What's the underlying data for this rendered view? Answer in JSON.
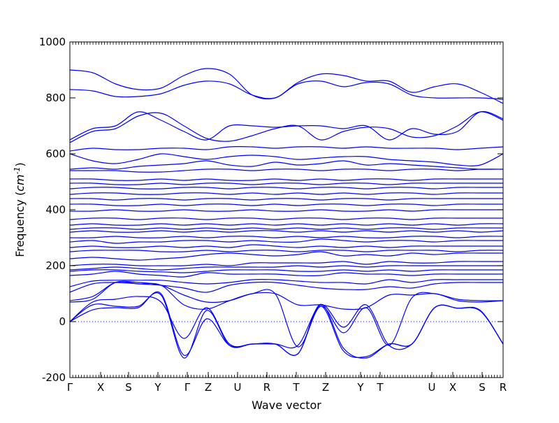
{
  "chart_data": {
    "type": "line",
    "xlabel": "Wave vector",
    "ylabel": "Frequency ($cm^{-1}$)",
    "ylim": [
      -200,
      1000
    ],
    "yticks": [
      -200,
      0,
      200,
      400,
      600,
      800,
      1000
    ],
    "high_symmetry_points": [
      "Γ",
      "X",
      "S",
      "Y",
      "Γ",
      "Z",
      "U",
      "R",
      "T",
      "Z",
      "Y",
      "T",
      "U",
      "X",
      "S",
      "R"
    ],
    "high_symmetry_positions": [
      0,
      1.1,
      2.1,
      3.15,
      4.2,
      4.95,
      6.0,
      7.05,
      8.1,
      9.15,
      10.4,
      11.1,
      12.95,
      13.7,
      14.75,
      15.5
    ],
    "zero_reference_line": {
      "y": 0,
      "style": "dotted"
    },
    "line_color": "#0000ff",
    "series": [
      {
        "values": [
          0,
          42,
          50,
          50,
          100,
          -120,
          10,
          -85,
          -80,
          -80,
          -115,
          55,
          -105,
          -125,
          -80,
          -80,
          50,
          48,
          38,
          -80
        ]
      },
      {
        "values": [
          0,
          60,
          55,
          55,
          95,
          -130,
          40,
          -85,
          -80,
          -80,
          -115,
          62,
          -95,
          -130,
          -80,
          -80,
          50,
          48,
          38,
          -80
        ]
      },
      {
        "values": [
          0,
          70,
          80,
          90,
          70,
          -60,
          50,
          -80,
          -80,
          -80,
          -85,
          60,
          -20,
          60,
          -85,
          -80,
          50,
          48,
          40,
          -80
        ]
      },
      {
        "values": [
          70,
          80,
          140,
          135,
          130,
          60,
          45,
          75,
          100,
          100,
          -90,
          55,
          -40,
          50,
          -85,
          85,
          100,
          75,
          70,
          75
        ]
      },
      {
        "values": [
          75,
          90,
          140,
          140,
          130,
          95,
          70,
          75,
          100,
          100,
          60,
          60,
          45,
          50,
          95,
          95,
          100,
          80,
          75,
          75
        ]
      },
      {
        "values": [
          105,
          135,
          140,
          135,
          130,
          120,
          105,
          130,
          140,
          140,
          130,
          120,
          115,
          115,
          125,
          120,
          135,
          140,
          140,
          140
        ]
      },
      {
        "values": [
          125,
          145,
          148,
          148,
          148,
          140,
          135,
          140,
          150,
          150,
          145,
          140,
          140,
          135,
          150,
          140,
          150,
          150,
          150,
          150
        ]
      },
      {
        "values": [
          165,
          170,
          180,
          170,
          165,
          160,
          175,
          170,
          170,
          170,
          165,
          165,
          175,
          170,
          170,
          165,
          170,
          170,
          170,
          170
        ]
      },
      {
        "values": [
          180,
          185,
          185,
          180,
          178,
          175,
          180,
          185,
          185,
          185,
          180,
          180,
          185,
          180,
          185,
          180,
          185,
          185,
          185,
          185
        ]
      },
      {
        "values": [
          185,
          190,
          195,
          190,
          185,
          190,
          195,
          195,
          195,
          195,
          200,
          195,
          200,
          195,
          200,
          200,
          200,
          200,
          200,
          200
        ]
      },
      {
        "values": [
          200,
          205,
          205,
          200,
          200,
          200,
          205,
          200,
          210,
          210,
          210,
          210,
          215,
          205,
          215,
          210,
          210,
          215,
          215,
          215
        ]
      },
      {
        "values": [
          225,
          230,
          225,
          220,
          225,
          230,
          240,
          245,
          240,
          235,
          240,
          250,
          235,
          240,
          235,
          245,
          240,
          245,
          245,
          245
        ]
      },
      {
        "values": [
          250,
          255,
          255,
          255,
          250,
          250,
          255,
          250,
          255,
          255,
          250,
          255,
          255,
          250,
          255,
          255,
          255,
          250,
          255,
          255
        ]
      },
      {
        "values": [
          265,
          270,
          265,
          265,
          270,
          265,
          270,
          265,
          275,
          270,
          265,
          270,
          265,
          270,
          265,
          270,
          270,
          270,
          270,
          270
        ]
      },
      {
        "values": [
          285,
          290,
          280,
          285,
          285,
          290,
          290,
          285,
          290,
          285,
          285,
          295,
          290,
          285,
          290,
          290,
          285,
          290,
          290,
          290
        ]
      },
      {
        "values": [
          300,
          300,
          305,
          300,
          300,
          305,
          300,
          305,
          305,
          300,
          305,
          300,
          305,
          300,
          300,
          305,
          305,
          300,
          305,
          305
        ]
      },
      {
        "values": [
          320,
          325,
          320,
          320,
          325,
          320,
          325,
          320,
          325,
          325,
          320,
          325,
          320,
          325,
          320,
          325,
          320,
          325,
          320,
          325
        ]
      },
      {
        "values": [
          330,
          335,
          335,
          330,
          335,
          330,
          335,
          330,
          335,
          330,
          335,
          330,
          335,
          330,
          335,
          335,
          330,
          335,
          335,
          335
        ]
      },
      {
        "values": [
          345,
          350,
          345,
          345,
          350,
          345,
          350,
          345,
          350,
          345,
          350,
          345,
          350,
          345,
          350,
          345,
          350,
          345,
          350,
          350
        ]
      },
      {
        "values": [
          365,
          370,
          370,
          365,
          370,
          370,
          365,
          370,
          370,
          365,
          370,
          370,
          365,
          370,
          370,
          365,
          370,
          370,
          370,
          370
        ]
      },
      {
        "values": [
          395,
          395,
          400,
          395,
          395,
          400,
          395,
          395,
          400,
          395,
          395,
          400,
          395,
          395,
          400,
          395,
          400,
          400,
          400,
          400
        ]
      },
      {
        "values": [
          420,
          420,
          415,
          415,
          420,
          415,
          420,
          420,
          415,
          420,
          415,
          420,
          420,
          415,
          420,
          420,
          415,
          420,
          420,
          420
        ]
      },
      {
        "values": [
          440,
          440,
          435,
          440,
          440,
          435,
          440,
          440,
          435,
          440,
          440,
          435,
          440,
          440,
          435,
          440,
          440,
          440,
          440,
          440
        ]
      },
      {
        "values": [
          455,
          460,
          460,
          455,
          455,
          460,
          460,
          455,
          460,
          455,
          460,
          455,
          460,
          455,
          460,
          460,
          455,
          460,
          460,
          460
        ]
      },
      {
        "values": [
          475,
          480,
          480,
          475,
          475,
          480,
          480,
          475,
          480,
          480,
          475,
          480,
          480,
          475,
          480,
          480,
          475,
          480,
          480,
          480
        ]
      },
      {
        "values": [
          495,
          495,
          490,
          490,
          495,
          490,
          495,
          495,
          490,
          495,
          495,
          490,
          495,
          495,
          490,
          495,
          495,
          495,
          495,
          495
        ]
      },
      {
        "values": [
          510,
          510,
          505,
          505,
          510,
          505,
          510,
          505,
          505,
          510,
          505,
          510,
          505,
          510,
          510,
          505,
          510,
          510,
          510,
          510
        ]
      },
      {
        "values": [
          540,
          540,
          540,
          535,
          535,
          540,
          545,
          545,
          540,
          545,
          545,
          540,
          545,
          545,
          540,
          545,
          545,
          540,
          545,
          545
        ]
      },
      {
        "values": [
          545,
          550,
          545,
          555,
          560,
          565,
          575,
          560,
          555,
          570,
          560,
          565,
          575,
          560,
          565,
          560,
          555,
          550,
          545,
          545
        ]
      },
      {
        "values": [
          600,
          575,
          565,
          580,
          600,
          590,
          580,
          590,
          595,
          590,
          580,
          585,
          590,
          590,
          580,
          575,
          570,
          560,
          560,
          600
        ]
      },
      {
        "values": [
          610,
          620,
          615,
          615,
          620,
          620,
          615,
          625,
          625,
          620,
          625,
          625,
          620,
          625,
          620,
          620,
          620,
          615,
          620,
          625
        ]
      },
      {
        "values": [
          640,
          680,
          690,
          735,
          745,
          700,
          655,
          645,
          665,
          690,
          700,
          650,
          680,
          695,
          690,
          660,
          665,
          700,
          750,
          720
        ]
      },
      {
        "values": [
          650,
          690,
          700,
          750,
          720,
          680,
          650,
          700,
          700,
          695,
          700,
          700,
          690,
          700,
          650,
          690,
          670,
          680,
          750,
          725
        ]
      },
      {
        "values": [
          830,
          825,
          805,
          805,
          815,
          845,
          860,
          850,
          810,
          800,
          850,
          860,
          840,
          855,
          850,
          810,
          800,
          800,
          800,
          795
        ]
      },
      {
        "values": [
          900,
          890,
          850,
          830,
          835,
          880,
          905,
          885,
          810,
          800,
          855,
          885,
          880,
          860,
          860,
          820,
          840,
          850,
          820,
          780
        ]
      }
    ]
  }
}
